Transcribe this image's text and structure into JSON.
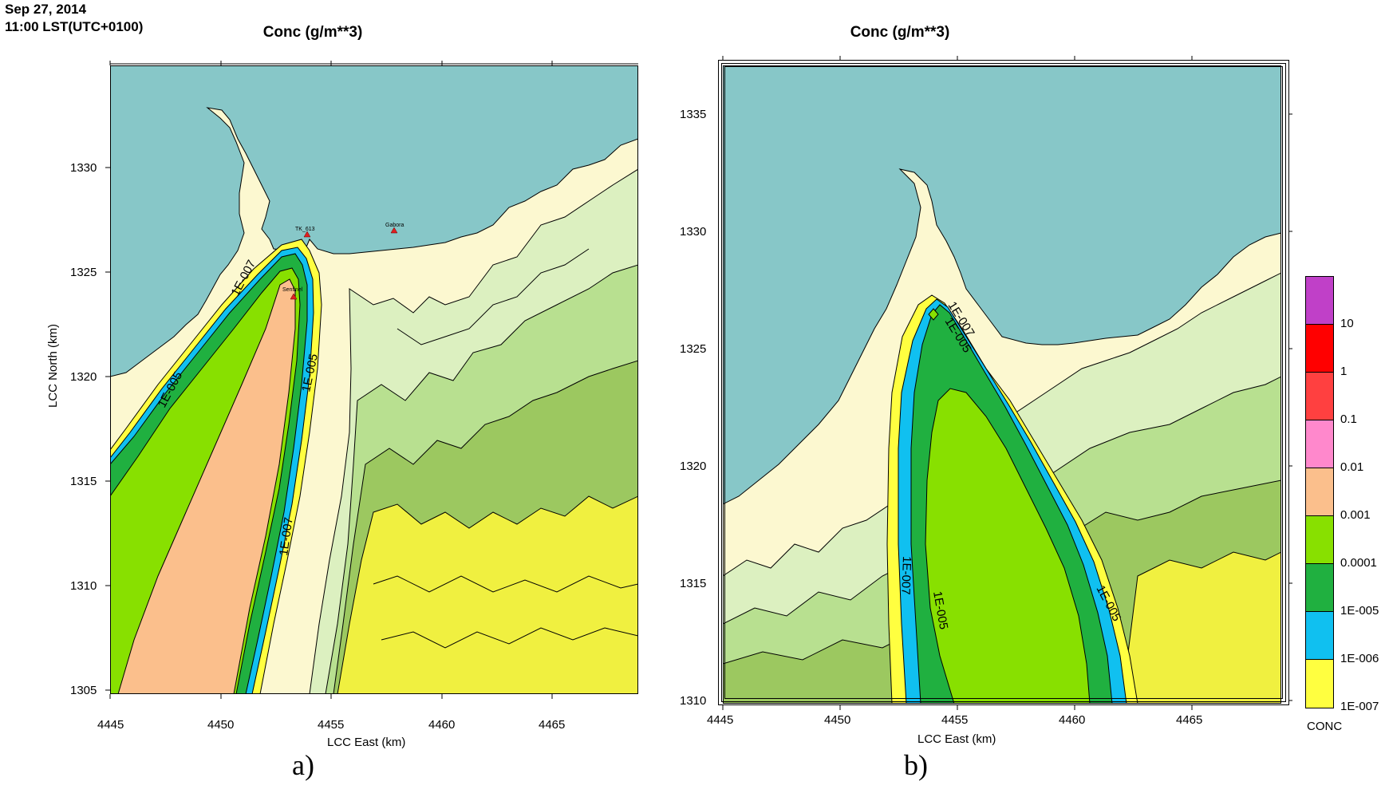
{
  "header": {
    "date": "Sep 27, 2014",
    "time": "11:00 LST(UTC+0100)"
  },
  "panels": [
    {
      "id": "a",
      "label": "a)",
      "title": "Conc (g/m**3)",
      "x_label": "LCC East (km)",
      "y_label": "LCC North (km)",
      "x_ticks": [
        "4445",
        "4450",
        "4455",
        "4460",
        "4465"
      ],
      "y_ticks": [
        "1305",
        "1310",
        "1315",
        "1320",
        "1325",
        "1330"
      ],
      "contour_labels": [
        "1E-007",
        "1E-005",
        "1E-005",
        "1E-007"
      ],
      "point_labels": [
        "TK_613",
        "Gabora",
        "Sentinel"
      ]
    },
    {
      "id": "b",
      "label": "b)",
      "title": "Conc (g/m**3)",
      "x_label": "LCC East (km)",
      "y_label": "",
      "x_ticks": [
        "4445",
        "4450",
        "4455",
        "4460",
        "4465"
      ],
      "y_ticks": [
        "1310",
        "1315",
        "1320",
        "1325",
        "1330",
        "1335"
      ],
      "contour_labels": [
        "1E-007",
        "1E-005",
        "1E-007",
        "1E-005",
        "1E-005"
      ]
    }
  ],
  "legend": {
    "title": "CONC",
    "labels": [
      "10",
      "1",
      "0.1",
      "0.01",
      "0.001",
      "0.0001",
      "1E-005",
      "1E-006",
      "1E-007"
    ],
    "colors": [
      "#c040c8",
      "#ff0000",
      "#ff4040",
      "#ff88cc",
      "#fbbf8c",
      "#88e000",
      "#20b040",
      "#10c0f0",
      "#ffff40"
    ]
  },
  "colors": {
    "sea": "#87c7c8",
    "land": "#fcf8d0",
    "terrain_light": "#dcf0c0",
    "terrain_mid": "#b8e090",
    "terrain_dark": "#9cc860",
    "terrain_yellow": "#f0f040",
    "plume_orange": "#fbbf8c",
    "plume_green": "#88e000",
    "plume_darkgreen": "#20b040",
    "plume_cyan": "#10c0f0",
    "plume_yellow": "#ffff40"
  }
}
